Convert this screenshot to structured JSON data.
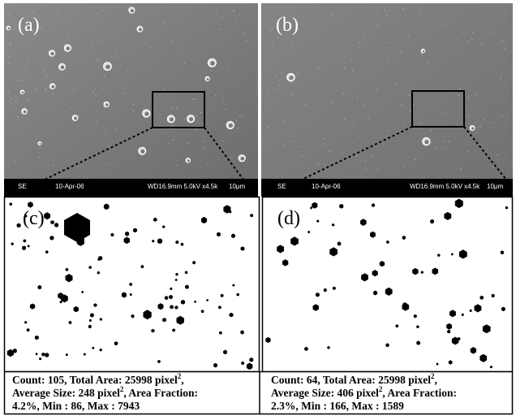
{
  "panels": [
    {
      "label": "(a)",
      "sem_bar": {
        "detector": "SE",
        "date": "10-Apr-06",
        "settings": "WD16.9mm  5.0kV x4.5k",
        "scale": "10μm"
      }
    },
    {
      "label": "(b)",
      "sem_bar": {
        "detector": "SE",
        "date": "10-Apr-06",
        "settings": "WD16.9mm  5.0kV x4.5k",
        "scale": "10μm"
      }
    },
    {
      "label": "(c)",
      "caption": [
        {
          "text": "Count: 105, Total Area: 25998 pixel",
          "sup": "2",
          "tail": ","
        },
        {
          "text": "Average Size: 248 pixel",
          "sup": "2",
          "tail": ", Area Fraction:"
        },
        {
          "text": "4.2%, Min : 86, Max : 7943"
        }
      ]
    },
    {
      "label": "(d)",
      "caption": [
        {
          "text": "Count: 64, Total Area: 25998 pixel",
          "sup": "2",
          "tail": ","
        },
        {
          "text": "Average Size: 406 pixel",
          "sup": "2",
          "tail": ", Area Fraction:"
        },
        {
          "text": "2.3%, Min : 166, Max : 1589"
        }
      ]
    }
  ]
}
